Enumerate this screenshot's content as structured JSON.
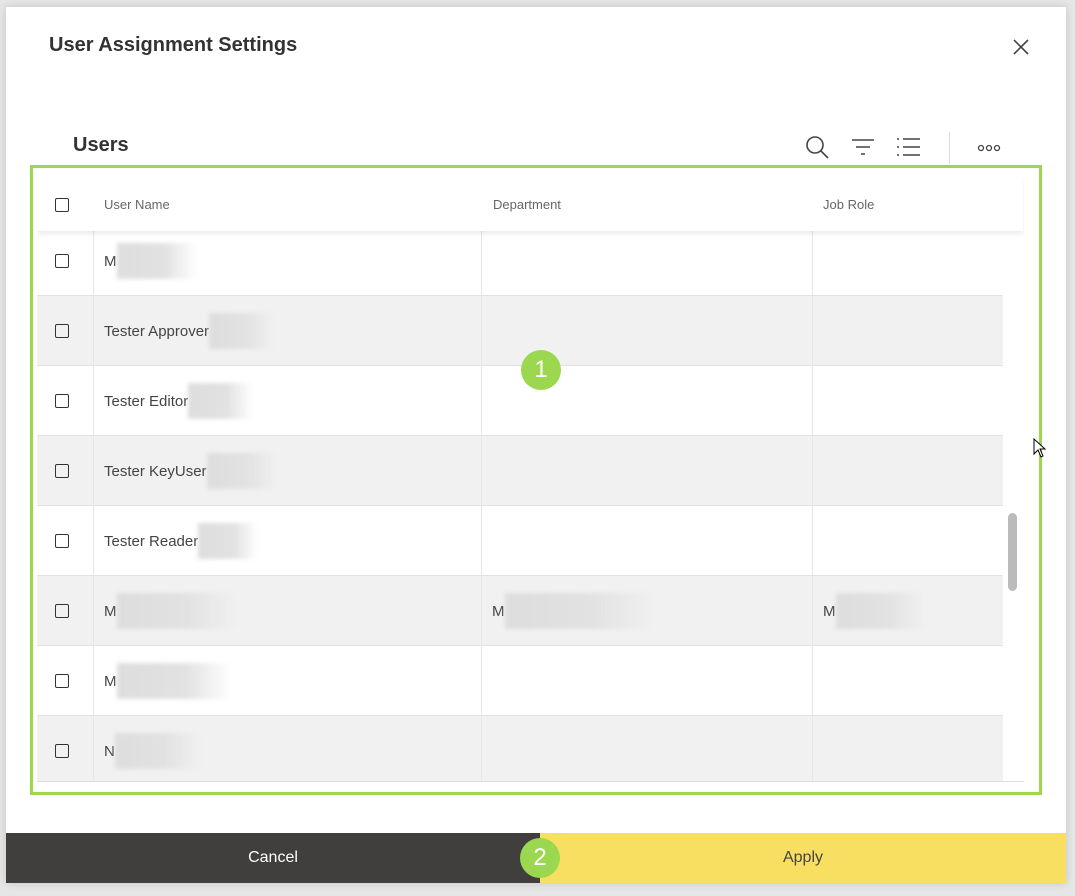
{
  "dialog": {
    "title": "User Assignment Settings",
    "close_icon": "close-icon"
  },
  "users": {
    "title": "Users",
    "tools": [
      "search-icon",
      "filter-icon",
      "list-icon",
      "more-icon"
    ]
  },
  "table": {
    "columns": [
      "User Name",
      "Department",
      "Job Role"
    ],
    "rows": [
      {
        "name": "M",
        "department": "",
        "job_role": ""
      },
      {
        "name": "Tester Approver",
        "department": "",
        "job_role": ""
      },
      {
        "name": "Tester Editor",
        "department": "",
        "job_role": ""
      },
      {
        "name": "Tester KeyUser",
        "department": "",
        "job_role": ""
      },
      {
        "name": "Tester Reader",
        "department": "",
        "job_role": ""
      },
      {
        "name": "M",
        "department": "M",
        "job_role": "M"
      },
      {
        "name": "M",
        "department": "",
        "job_role": ""
      },
      {
        "name": "N",
        "department": "",
        "job_role": ""
      }
    ]
  },
  "badges": [
    "1",
    "2"
  ],
  "footer": {
    "cancel": "Cancel",
    "apply": "Apply"
  },
  "colors": {
    "accent_green": "#9bd84f",
    "apply": "#f8df62",
    "cancel": "#403f3d"
  }
}
